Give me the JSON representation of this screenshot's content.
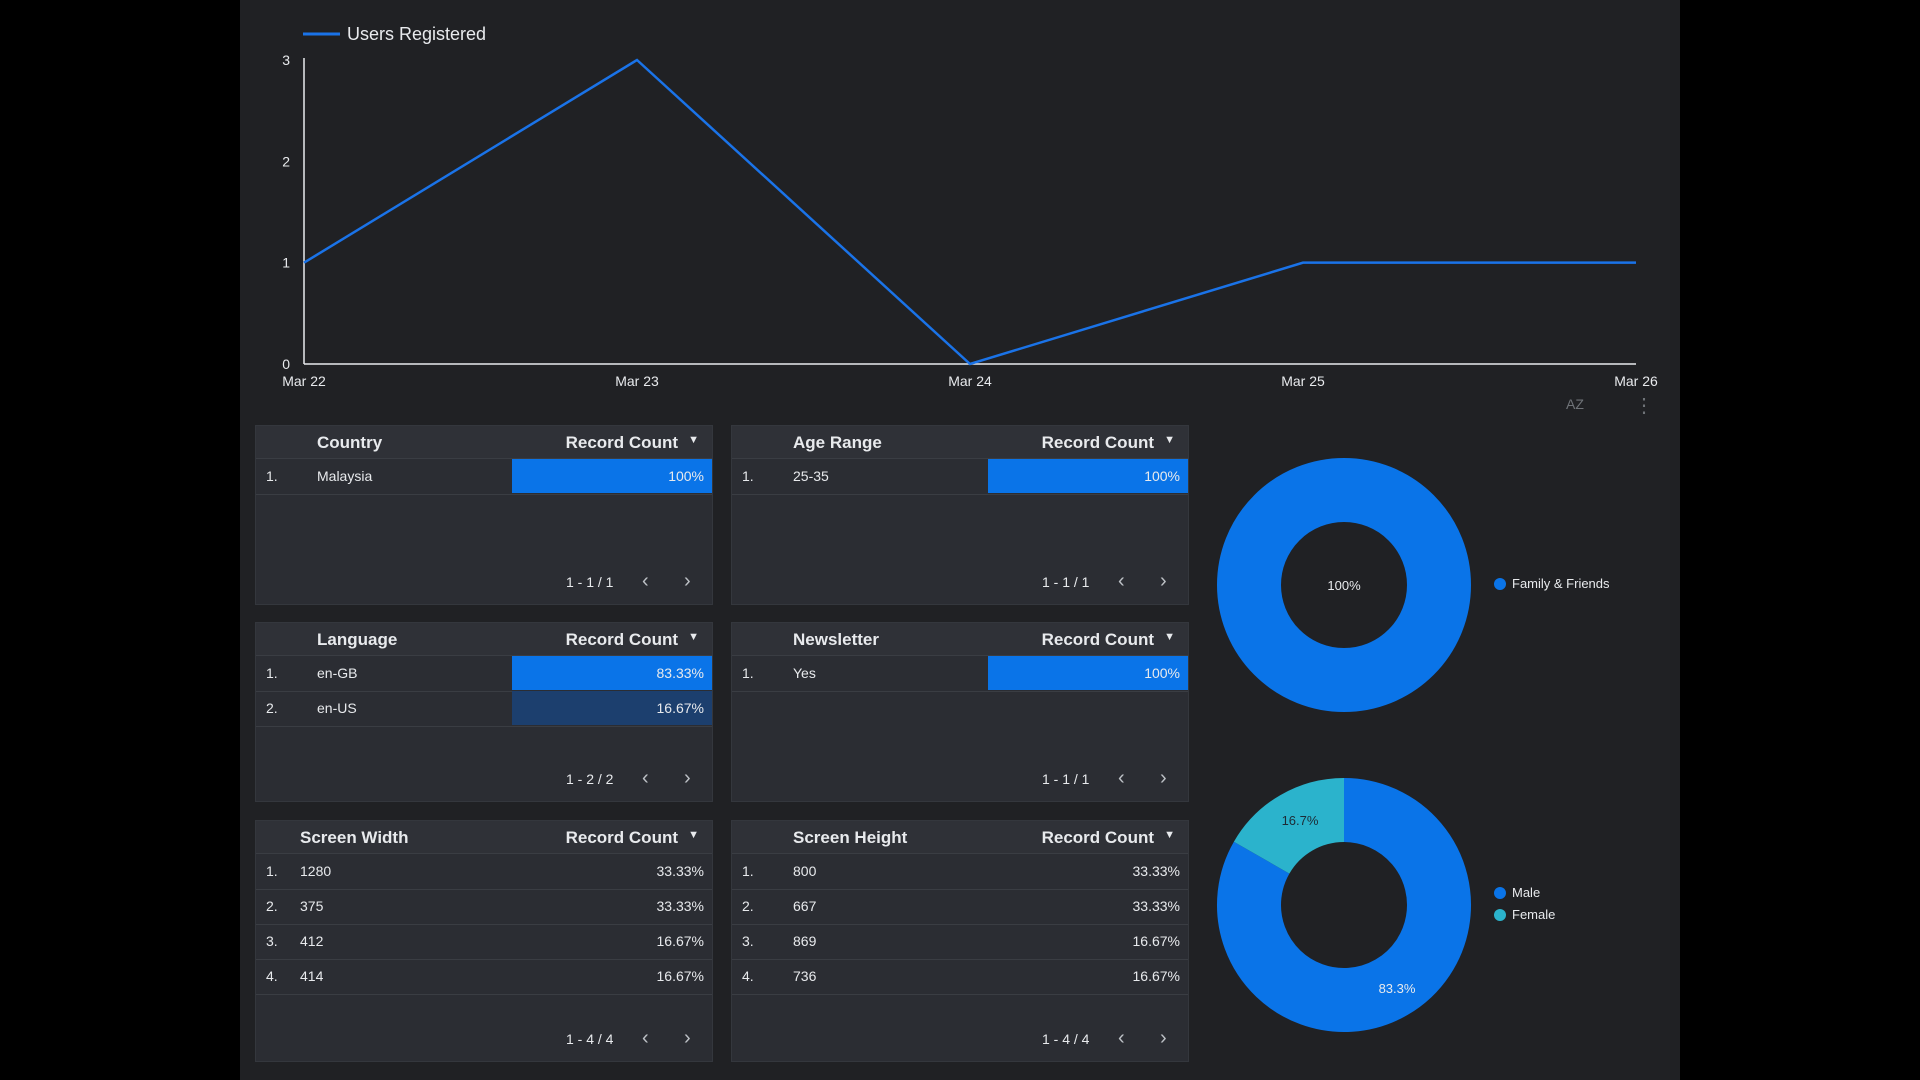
{
  "line_chart": {
    "legend": "Users Registered",
    "color": "#1a73e8"
  },
  "chart_data": [
    {
      "type": "line",
      "x": [
        "Mar 22",
        "Mar 23",
        "Mar 24",
        "Mar 25",
        "Mar 26"
      ],
      "series": [
        {
          "name": "Users Registered",
          "values": [
            1,
            3,
            0,
            1,
            1
          ]
        }
      ],
      "yticks": [
        "0",
        "1",
        "2",
        "3"
      ],
      "ylim": [
        0,
        3
      ],
      "grid": false,
      "legend_position": "top-left"
    },
    {
      "type": "pie",
      "donut": true,
      "labels": [
        "Family & Friends"
      ],
      "values": [
        100
      ],
      "value_labels": [
        "100%"
      ],
      "colors": [
        "#0a74e8"
      ],
      "legend_position": "right"
    },
    {
      "type": "pie",
      "donut": true,
      "labels": [
        "Male",
        "Female"
      ],
      "values": [
        83.3,
        16.7
      ],
      "value_labels": [
        "83.3%",
        "16.7%"
      ],
      "colors": [
        "#0a74e8",
        "#2bb3cc"
      ],
      "legend_position": "right"
    }
  ],
  "toolbar": {
    "sort_icon": "sort-az-icon",
    "sort_label": "AZ",
    "more_icon": "more-vert-icon",
    "more_label": "⋮"
  },
  "tables": {
    "country": {
      "dimension": "Country",
      "metric": "Record Count",
      "caret": "▼",
      "rows": [
        {
          "idx": "1.",
          "label": "Malaysia",
          "value": "100%",
          "fraction": 1.0
        }
      ],
      "pager": "1 - 1 / 1",
      "prev": "‹",
      "next": "›"
    },
    "age": {
      "dimension": "Age Range",
      "metric": "Record Count",
      "caret": "▼",
      "rows": [
        {
          "idx": "1.",
          "label": "25-35",
          "value": "100%",
          "fraction": 1.0
        }
      ],
      "pager": "1 - 1 / 1",
      "prev": "‹",
      "next": "›"
    },
    "language": {
      "dimension": "Language",
      "metric": "Record Count",
      "caret": "▼",
      "rows": [
        {
          "idx": "1.",
          "label": "en-GB",
          "value": "83.33%",
          "fraction": 1.0
        },
        {
          "idx": "2.",
          "label": "en-US",
          "value": "16.67%",
          "fraction": 1.0
        }
      ],
      "pager": "1 - 2 / 2",
      "prev": "‹",
      "next": "›"
    },
    "newsletter": {
      "dimension": "Newsletter",
      "metric": "Record Count",
      "caret": "▼",
      "rows": [
        {
          "idx": "1.",
          "label": "Yes",
          "value": "100%",
          "fraction": 1.0
        }
      ],
      "pager": "1 - 1 / 1",
      "prev": "‹",
      "next": "›"
    },
    "screen_width": {
      "dimension": "Screen Width",
      "metric": "Record Count",
      "caret": "▼",
      "rows": [
        {
          "idx": "1.",
          "label": "1280",
          "value": "33.33%"
        },
        {
          "idx": "2.",
          "label": "375",
          "value": "33.33%"
        },
        {
          "idx": "3.",
          "label": "412",
          "value": "16.67%"
        },
        {
          "idx": "4.",
          "label": "414",
          "value": "16.67%"
        }
      ],
      "pager": "1 - 4 / 4",
      "prev": "‹",
      "next": "›"
    },
    "screen_height": {
      "dimension": "Screen Height",
      "metric": "Record Count",
      "caret": "▼",
      "rows": [
        {
          "idx": "1.",
          "label": "800",
          "value": "33.33%"
        },
        {
          "idx": "2.",
          "label": "667",
          "value": "33.33%"
        },
        {
          "idx": "3.",
          "label": "869",
          "value": "16.67%"
        },
        {
          "idx": "4.",
          "label": "736",
          "value": "16.67%"
        }
      ],
      "pager": "1 - 4 / 4",
      "prev": "‹",
      "next": "›"
    }
  },
  "donut_source": {
    "legend": [
      {
        "label": "Family & Friends"
      }
    ],
    "center_label": "100%"
  },
  "donut_gender": {
    "legend": [
      {
        "label": "Male"
      },
      {
        "label": "Female"
      }
    ],
    "male_label": "83.3%",
    "female_label": "16.7%"
  }
}
